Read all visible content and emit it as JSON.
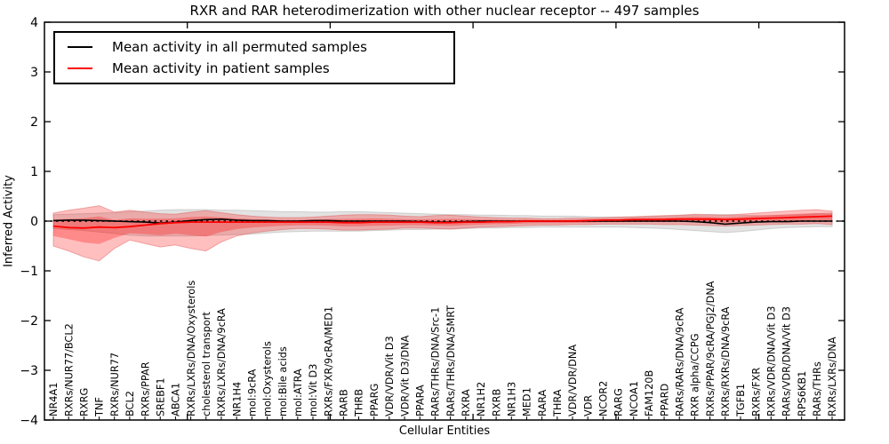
{
  "title": "RXR and RAR heterodimerization with other nuclear receptor -- 497 samples",
  "legend": {
    "entries": [
      {
        "label": "Mean activity in all permuted samples",
        "color": "#000000"
      },
      {
        "label": "Mean activity in patient samples",
        "color": "#ff0000"
      }
    ]
  },
  "axes": {
    "ylabel": "Inferred Activity",
    "xlabel": "Cellular Entities",
    "ytick_labels": [
      "4",
      "3",
      "2",
      "1",
      "0",
      "−1",
      "−2",
      "−3",
      "−4"
    ],
    "ytick_values": [
      4,
      3,
      2,
      1,
      0,
      -1,
      -2,
      -3,
      -4
    ],
    "ylim": [
      -4,
      4
    ],
    "grid": false
  },
  "colors": {
    "permuted_line": "#000000",
    "patient_line": "#ff0000",
    "permuted_band": "#c0c0c0",
    "patient_band": "#ff0000",
    "zero_line": "#000000"
  },
  "chart_data": {
    "type": "line",
    "title": "RXR and RAR heterodimerization with other nuclear receptor -- 497 samples",
    "xlabel": "Cellular Entities",
    "ylabel": "Inferred Activity",
    "ylim": [
      -4,
      4
    ],
    "legend_position": "upper-left",
    "categories": [
      "NR4A1",
      "RXRs/NUR77/BCL2",
      "RXRG",
      "TNF",
      "RXRs/NUR77",
      "BCL2",
      "RXRs/PPAR",
      "SREBF1",
      "ABCA1",
      "RXRs/LXRs/DNA/Oxysterols",
      "cholesterol transport",
      "RXRs/LXRs/DNA/9cRA",
      "NR1H4",
      "mol:9cRA",
      "mol:Oxysterols",
      "mol:Bile acids",
      "mol:ATRA",
      "mol:Vit D3",
      "RXRs/FXR/9cRA/MED1",
      "RARB",
      "THRB",
      "PPARG",
      "VDR/VDR/Vit D3",
      "VDR/Vit D3/DNA",
      "PPARA",
      "RARs/THRs/DNA/Src-1",
      "RARs/THRs/DNA/SMRT",
      "RXRA",
      "NR1H2",
      "RXRB",
      "NR1H3",
      "MED1",
      "RARA",
      "THRA",
      "VDR/VDR/DNA",
      "VDR",
      "NCOR2",
      "RARG",
      "NCOA1",
      "FAM120B",
      "PPARD",
      "RARs/RARs/DNA/9cRA",
      "RXR alpha/CCPG",
      "RXRs/PPAR/9cRA/PGJ2/DNA",
      "RXRs/RXRs/DNA/9cRA",
      "TGFB1",
      "RXRs/FXR",
      "RXRs/VDR/DNA/Vit D3",
      "RARs/VDR/DNA/Vit D3",
      "RPS6KB1",
      "RARs/THRs",
      "RXRs/LXRs/DNA"
    ],
    "series": [
      {
        "name": "Mean activity in all permuted samples",
        "color": "#000000",
        "values": [
          0.01,
          0.02,
          0.02,
          0.01,
          0.0,
          -0.01,
          -0.02,
          -0.04,
          -0.02,
          0.01,
          0.03,
          0.04,
          0.02,
          0.01,
          0.01,
          0.0,
          0.0,
          0.01,
          0.01,
          0.0,
          0.0,
          0.0,
          0.0,
          0.0,
          -0.01,
          -0.02,
          -0.02,
          -0.01,
          0.0,
          0.0,
          0.0,
          0.0,
          0.0,
          0.0,
          0.0,
          0.0,
          0.0,
          0.0,
          0.0,
          0.0,
          0.0,
          0.0,
          -0.01,
          -0.03,
          -0.06,
          -0.04,
          -0.02,
          -0.01,
          -0.01,
          0.0,
          0.0,
          0.0
        ]
      },
      {
        "name": "Mean activity in patient samples",
        "color": "#ff0000",
        "values": [
          -0.1,
          -0.13,
          -0.14,
          -0.12,
          -0.13,
          -0.11,
          -0.08,
          -0.05,
          -0.03,
          -0.02,
          -0.02,
          -0.02,
          -0.02,
          -0.02,
          -0.02,
          -0.02,
          -0.02,
          -0.02,
          -0.02,
          -0.03,
          -0.03,
          -0.02,
          -0.02,
          -0.02,
          -0.02,
          -0.03,
          -0.03,
          -0.02,
          -0.02,
          -0.01,
          -0.01,
          0.0,
          0.0,
          0.0,
          0.0,
          0.01,
          0.02,
          0.02,
          0.03,
          0.03,
          0.03,
          0.04,
          0.04,
          0.04,
          0.03,
          0.04,
          0.05,
          0.06,
          0.07,
          0.08,
          0.09,
          0.1
        ]
      }
    ],
    "bands": [
      {
        "name": "permuted-std-band",
        "color": "#c0c0c0",
        "upper": [
          0.13,
          0.14,
          0.15,
          0.16,
          0.17,
          0.19,
          0.2,
          0.22,
          0.23,
          0.23,
          0.23,
          0.22,
          0.22,
          0.21,
          0.2,
          0.19,
          0.19,
          0.18,
          0.18,
          0.19,
          0.19,
          0.18,
          0.17,
          0.16,
          0.15,
          0.14,
          0.13,
          0.13,
          0.12,
          0.12,
          0.11,
          0.11,
          0.1,
          0.1,
          0.1,
          0.09,
          0.08,
          0.08,
          0.08,
          0.09,
          0.1,
          0.11,
          0.12,
          0.13,
          0.13,
          0.12,
          0.11,
          0.11,
          0.12,
          0.13,
          0.15,
          0.16
        ],
        "lower": [
          -0.15,
          -0.17,
          -0.19,
          -0.22,
          -0.25,
          -0.28,
          -0.3,
          -0.3,
          -0.3,
          -0.3,
          -0.29,
          -0.28,
          -0.27,
          -0.26,
          -0.24,
          -0.22,
          -0.21,
          -0.2,
          -0.2,
          -0.2,
          -0.2,
          -0.19,
          -0.18,
          -0.17,
          -0.17,
          -0.16,
          -0.16,
          -0.15,
          -0.14,
          -0.14,
          -0.13,
          -0.13,
          -0.12,
          -0.12,
          -0.12,
          -0.12,
          -0.12,
          -0.12,
          -0.13,
          -0.14,
          -0.15,
          -0.17,
          -0.19,
          -0.21,
          -0.23,
          -0.21,
          -0.18,
          -0.15,
          -0.13,
          -0.12,
          -0.11,
          -0.11
        ]
      },
      {
        "name": "patient-std-band",
        "color": "#ff0000",
        "upper": [
          0.16,
          0.22,
          0.26,
          0.31,
          0.18,
          0.22,
          0.18,
          0.15,
          0.14,
          0.18,
          0.21,
          0.17,
          0.13,
          0.1,
          0.08,
          0.07,
          0.07,
          0.08,
          0.1,
          0.12,
          0.13,
          0.13,
          0.12,
          0.1,
          0.09,
          0.11,
          0.12,
          0.1,
          0.08,
          0.07,
          0.06,
          0.06,
          0.05,
          0.05,
          0.06,
          0.06,
          0.07,
          0.08,
          0.09,
          0.1,
          0.11,
          0.12,
          0.14,
          0.13,
          0.12,
          0.14,
          0.16,
          0.18,
          0.2,
          0.22,
          0.23,
          0.2
        ],
        "lower": [
          -0.5,
          -0.6,
          -0.72,
          -0.8,
          -0.55,
          -0.38,
          -0.45,
          -0.52,
          -0.48,
          -0.55,
          -0.6,
          -0.42,
          -0.3,
          -0.24,
          -0.2,
          -0.17,
          -0.15,
          -0.15,
          -0.16,
          -0.18,
          -0.18,
          -0.17,
          -0.16,
          -0.14,
          -0.14,
          -0.15,
          -0.16,
          -0.14,
          -0.12,
          -0.11,
          -0.1,
          -0.09,
          -0.08,
          -0.08,
          -0.07,
          -0.07,
          -0.06,
          -0.06,
          -0.06,
          -0.06,
          -0.07,
          -0.07,
          -0.08,
          -0.09,
          -0.1,
          -0.09,
          -0.08,
          -0.07,
          -0.06,
          -0.06,
          -0.05,
          -0.07
        ]
      }
    ],
    "zero_reference_line": {
      "value": 0,
      "style": "dotted",
      "color": "#000000"
    }
  }
}
